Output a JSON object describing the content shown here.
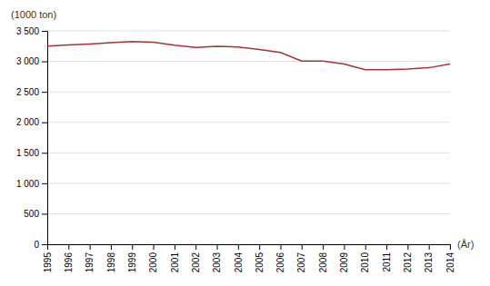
{
  "chart_data": {
    "type": "line",
    "x": [
      1995,
      1996,
      1997,
      1998,
      1999,
      2000,
      2001,
      2002,
      2003,
      2004,
      2005,
      2006,
      2007,
      2008,
      2009,
      2010,
      2011,
      2012,
      2013,
      2014
    ],
    "values": [
      3250,
      3270,
      3285,
      3305,
      3325,
      3315,
      3265,
      3230,
      3245,
      3235,
      3195,
      3145,
      3005,
      3005,
      2955,
      2865,
      2865,
      2875,
      2895,
      2955
    ],
    "color": "#a83232",
    "xlabel": "(År)",
    "ylabel": "(1000 ton)",
    "xlim": [
      1995,
      2014
    ],
    "xticks": [
      1995,
      1996,
      1997,
      1998,
      1999,
      2000,
      2001,
      2002,
      2003,
      2004,
      2005,
      2006,
      2007,
      2008,
      2009,
      2010,
      2011,
      2012,
      2013,
      2014
    ],
    "ylim": [
      0,
      3500
    ],
    "yticks": [
      0,
      500,
      {
        "value": 1000,
        "label": "1 000"
      },
      {
        "value": 1500,
        "label": "1 500"
      },
      {
        "value": 2000,
        "label": "2 000"
      },
      {
        "value": 2500,
        "label": "2 500"
      },
      {
        "value": 3000,
        "label": "3 000"
      },
      {
        "value": 3500,
        "label": "3 500"
      }
    ],
    "grid": true
  }
}
